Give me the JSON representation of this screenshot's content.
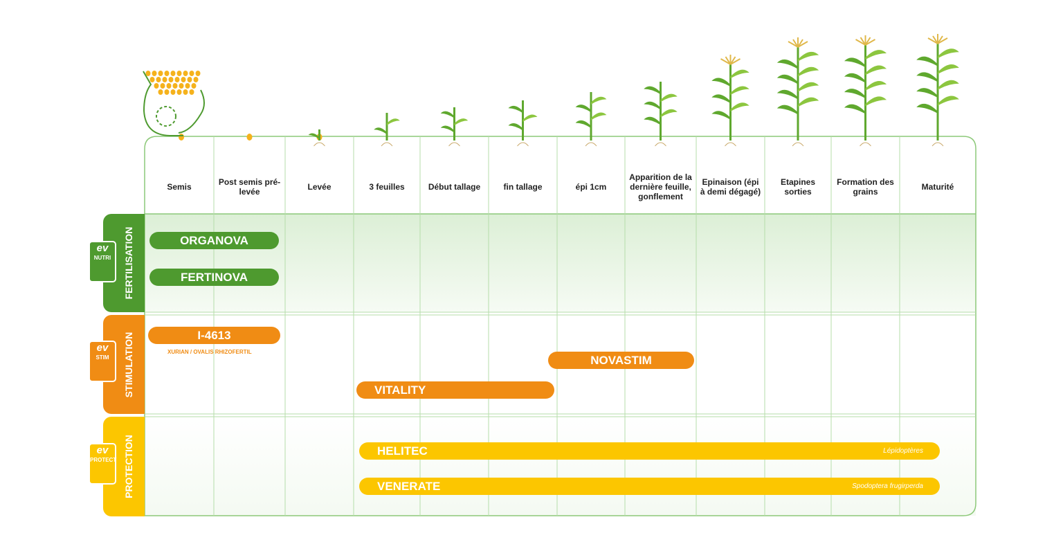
{
  "stages": [
    "Semis",
    "Post semis pré-levée",
    "Levée",
    "3 feuilles",
    "Début tallage",
    "fin tallage",
    "épi 1cm",
    "Apparition de la dernière feuille, gonflement",
    "Epinaison (épi à demi dégagé)",
    "Etapines sorties",
    "Formation des grains",
    "Maturité"
  ],
  "sections": [
    {
      "label": "FERTILISATION",
      "logo": "ev",
      "badge": "NUTRI",
      "products": [
        {
          "name": "ORGANOVA"
        },
        {
          "name": "FERTINOVA"
        }
      ]
    },
    {
      "label": "STIMULATION",
      "logo": "ev",
      "badge": "STIM",
      "products": [
        {
          "name": "I-4613",
          "note": "XURIAN / OVALIS RHIZOFERTIL"
        },
        {
          "name": "NOVASTIM"
        },
        {
          "name": "VITALITY"
        }
      ]
    },
    {
      "label": "PROTECTION",
      "logo": "ev",
      "badge": "PROTECT",
      "products": [
        {
          "name": "HELITEC",
          "note": "Lépidoptères"
        },
        {
          "name": "VENERATE",
          "note": "Spodoptera frugirperda"
        }
      ]
    }
  ]
}
